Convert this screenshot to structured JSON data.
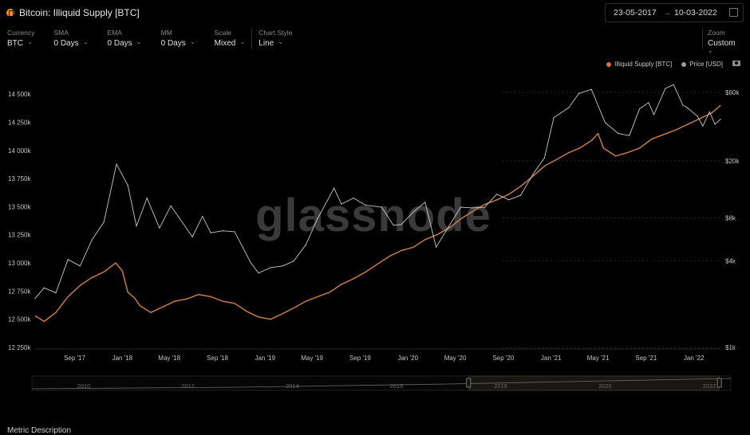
{
  "header": {
    "title": "Bitcoin: Illiquid Supply [BTC]",
    "date_from": "23-05-2017",
    "date_arrow": "→",
    "date_to": "10-03-2022"
  },
  "controls": [
    {
      "label": "Currency",
      "value": "BTC"
    },
    {
      "label": "SMA",
      "value": "0 Days"
    },
    {
      "label": "EMA",
      "value": "0 Days"
    },
    {
      "label": "MM",
      "value": "0 Days"
    },
    {
      "label": "Scale",
      "value": "Mixed"
    },
    {
      "label": "Chart Style",
      "value": "Line"
    }
  ],
  "zoom": {
    "label": "Zoom",
    "value": "Custom"
  },
  "footer": {
    "metric_description": "Metric Description"
  },
  "colors": {
    "illiquid": "#c47a4a",
    "price": "#c9c9c9",
    "background": "#000000"
  },
  "icons": [
    "bitcoin-coin-icon",
    "calendar-icon",
    "chevron-down-icon",
    "camera-icon"
  ],
  "chart_data": {
    "type": "line",
    "watermark": "glassnode",
    "legend_position": "top-right",
    "x_range": [
      "2017-05-23",
      "2022-03-10"
    ],
    "x_ticks": [
      "Sep '17",
      "Jan '18",
      "May '18",
      "Sep '18",
      "Jan '19",
      "May '19",
      "Sep '19",
      "Jan '20",
      "May '20",
      "Sep '20",
      "Jan '21",
      "May '21",
      "Sep '21",
      "Jan '22"
    ],
    "x_tick_dates": [
      "2017-09-01",
      "2018-01-01",
      "2018-05-01",
      "2018-09-01",
      "2019-01-01",
      "2019-05-01",
      "2019-09-01",
      "2020-01-01",
      "2020-05-01",
      "2020-09-01",
      "2021-01-01",
      "2021-05-01",
      "2021-09-01",
      "2022-01-01"
    ],
    "y_left": {
      "scale": "linear",
      "range": [
        12250000,
        14600000
      ],
      "ticks": [
        12250000,
        12500000,
        12750000,
        13000000,
        13250000,
        13500000,
        13750000,
        14000000,
        14250000,
        14500000
      ],
      "tick_labels": [
        "12 250k",
        "12 500k",
        "12 750k",
        "13 000k",
        "13 250k",
        "13 500k",
        "13 750k",
        "14 000k",
        "14 250k",
        "14 500k"
      ]
    },
    "y_right": {
      "scale": "log",
      "range": [
        1000,
        70000
      ],
      "ticks": [
        1000,
        4000,
        8000,
        20000,
        60000
      ],
      "tick_labels": [
        "$1k",
        "$4k",
        "$8k",
        "$20k",
        "$60k"
      ]
    },
    "grid": {
      "horizontal_dotted": true
    },
    "series": [
      {
        "name": "Illiquid Supply [BTC]",
        "axis": "left",
        "x": [
          "2017-05-23",
          "2017-06-15",
          "2017-07-15",
          "2017-08-15",
          "2017-09-15",
          "2017-10-15",
          "2017-11-15",
          "2017-12-15",
          "2018-01-01",
          "2018-01-15",
          "2018-02-01",
          "2018-02-15",
          "2018-03-15",
          "2018-04-15",
          "2018-05-15",
          "2018-06-15",
          "2018-07-15",
          "2018-08-15",
          "2018-09-15",
          "2018-10-15",
          "2018-11-15",
          "2018-12-15",
          "2019-01-15",
          "2019-02-15",
          "2019-03-15",
          "2019-04-15",
          "2019-05-15",
          "2019-06-15",
          "2019-07-15",
          "2019-08-15",
          "2019-09-15",
          "2019-10-15",
          "2019-11-15",
          "2019-12-15",
          "2020-01-15",
          "2020-02-15",
          "2020-03-15",
          "2020-04-15",
          "2020-05-15",
          "2020-06-15",
          "2020-07-15",
          "2020-08-15",
          "2020-09-15",
          "2020-10-15",
          "2020-11-15",
          "2020-12-15",
          "2021-01-15",
          "2021-02-15",
          "2021-03-15",
          "2021-04-15",
          "2021-05-01",
          "2021-05-15",
          "2021-06-15",
          "2021-07-15",
          "2021-08-15",
          "2021-09-15",
          "2021-10-15",
          "2021-11-15",
          "2021-12-15",
          "2022-01-15",
          "2022-02-15",
          "2022-03-10"
        ],
        "values": [
          12530000,
          12480000,
          12560000,
          12700000,
          12800000,
          12870000,
          12920000,
          13000000,
          12930000,
          12740000,
          12690000,
          12620000,
          12560000,
          12610000,
          12660000,
          12680000,
          12720000,
          12700000,
          12660000,
          12640000,
          12570000,
          12520000,
          12500000,
          12550000,
          12600000,
          12660000,
          12700000,
          12740000,
          12810000,
          12860000,
          12920000,
          12990000,
          13060000,
          13110000,
          13140000,
          13210000,
          13250000,
          13310000,
          13390000,
          13460000,
          13520000,
          13560000,
          13610000,
          13680000,
          13770000,
          13860000,
          13920000,
          13980000,
          14020000,
          14090000,
          14150000,
          14020000,
          13950000,
          13980000,
          14020000,
          14100000,
          14140000,
          14180000,
          14230000,
          14280000,
          14330000,
          14400000
        ]
      },
      {
        "name": "Price [USD]",
        "axis": "right",
        "x": [
          "2017-05-23",
          "2017-06-15",
          "2017-07-15",
          "2017-08-15",
          "2017-09-15",
          "2017-10-15",
          "2017-11-15",
          "2017-12-17",
          "2018-01-15",
          "2018-02-06",
          "2018-03-05",
          "2018-04-06",
          "2018-05-05",
          "2018-06-29",
          "2018-07-25",
          "2018-08-15",
          "2018-09-15",
          "2018-10-15",
          "2018-11-25",
          "2018-12-15",
          "2019-01-15",
          "2019-02-15",
          "2019-03-15",
          "2019-04-15",
          "2019-05-15",
          "2019-06-26",
          "2019-07-15",
          "2019-08-15",
          "2019-09-15",
          "2019-10-26",
          "2019-11-25",
          "2019-12-15",
          "2020-01-15",
          "2020-02-14",
          "2020-03-13",
          "2020-04-15",
          "2020-05-15",
          "2020-06-15",
          "2020-07-15",
          "2020-08-15",
          "2020-09-15",
          "2020-10-15",
          "2020-11-15",
          "2020-12-15",
          "2021-01-08",
          "2021-02-15",
          "2021-03-13",
          "2021-04-14",
          "2021-05-19",
          "2021-06-22",
          "2021-07-20",
          "2021-08-15",
          "2021-09-07",
          "2021-09-21",
          "2021-10-20",
          "2021-11-10",
          "2021-12-04",
          "2021-12-15",
          "2022-01-10",
          "2022-01-24",
          "2022-02-10",
          "2022-02-24",
          "2022-03-10"
        ],
        "values": [
          2200,
          2600,
          2400,
          4100,
          3700,
          5600,
          7500,
          19000,
          13500,
          7000,
          11000,
          6800,
          9700,
          5900,
          8200,
          6300,
          6500,
          6400,
          3900,
          3300,
          3600,
          3700,
          4000,
          5200,
          7900,
          12900,
          10000,
          11000,
          9800,
          9500,
          7100,
          7200,
          8800,
          10300,
          5000,
          7000,
          9500,
          9400,
          9500,
          11700,
          10700,
          11500,
          16000,
          21000,
          40000,
          47000,
          59000,
          63000,
          37000,
          31000,
          30000,
          46000,
          51000,
          42000,
          64000,
          68000,
          49000,
          47000,
          41000,
          35000,
          44000,
          36000,
          39000
        ]
      }
    ],
    "navigator": {
      "labels": [
        "2010",
        "2012",
        "2014",
        "2016",
        "2018",
        "2020",
        "2022"
      ],
      "selected_from": "2017-05-23",
      "selected_to": "2022-03-10"
    }
  }
}
